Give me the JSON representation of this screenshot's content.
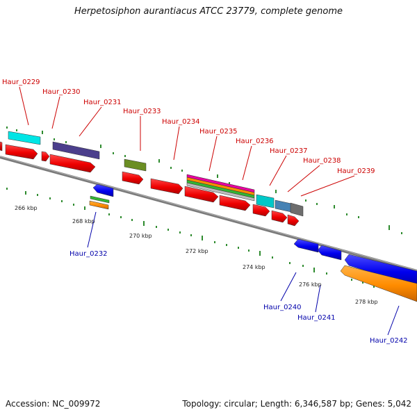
{
  "title": "Herpetosiphon aurantiacus ATCC 23779, complete genome",
  "footer": {
    "accession": "Accession: NC_009972",
    "topology": "Topology: circular; Length: 6,346,587 bp; Genes: 5,042"
  },
  "colors": {
    "backbone": "#808080",
    "tick": "#2e8b2e",
    "label_top": "#cc0000",
    "label_bottom": "#0000aa",
    "scale_text": "#222222"
  },
  "scale_labels": [
    "266 kbp",
    "268 kbp",
    "270 kbp",
    "272 kbp",
    "274 kbp",
    "276 kbp",
    "278 kbp"
  ],
  "gene_labels_top": [
    "Haur_0229",
    "Haur_0230",
    "Haur_0231",
    "Haur_0233",
    "Haur_0234",
    "Haur_0235",
    "Haur_0236",
    "Haur_0237",
    "Haur_0238",
    "Haur_0239"
  ],
  "gene_labels_bottom": [
    "Haur_0232",
    "Haur_0240",
    "Haur_0241",
    "Haur_0242"
  ]
}
